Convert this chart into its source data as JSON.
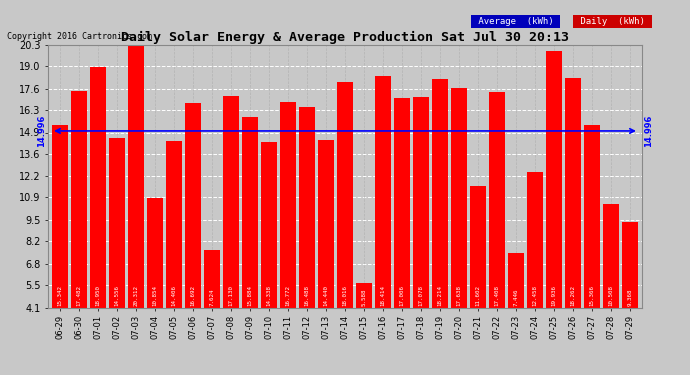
{
  "title": "Daily Solar Energy & Average Production Sat Jul 30 20:13",
  "copyright": "Copyright 2016 Cartronics.com",
  "average_label": "14.996",
  "average_value": 14.996,
  "bar_color": "#FF0000",
  "avg_line_color": "#0000FF",
  "background_color": "#C8C8C8",
  "plot_bg_color": "#C8C8C8",
  "categories": [
    "06-29",
    "06-30",
    "07-01",
    "07-02",
    "07-03",
    "07-04",
    "07-05",
    "07-06",
    "07-07",
    "07-08",
    "07-09",
    "07-10",
    "07-11",
    "07-12",
    "07-13",
    "07-14",
    "07-15",
    "07-16",
    "07-17",
    "07-18",
    "07-19",
    "07-20",
    "07-21",
    "07-22",
    "07-23",
    "07-24",
    "07-25",
    "07-26",
    "07-27",
    "07-28",
    "07-29"
  ],
  "values": [
    15.342,
    17.482,
    18.95,
    14.556,
    20.312,
    10.854,
    14.406,
    16.692,
    7.624,
    17.13,
    15.884,
    14.338,
    16.772,
    16.488,
    14.44,
    18.016,
    5.588,
    18.414,
    17.006,
    17.078,
    18.214,
    17.638,
    11.602,
    17.408,
    7.446,
    12.458,
    19.936,
    18.262,
    15.366,
    10.508,
    9.368
  ],
  "yticks": [
    4.1,
    5.5,
    6.8,
    8.2,
    9.5,
    10.9,
    12.2,
    13.6,
    14.9,
    16.3,
    17.6,
    19.0,
    20.3
  ],
  "ymin": 4.1,
  "ymax": 20.3,
  "legend_avg_bg": "#0000BB",
  "legend_daily_bg": "#CC0000",
  "legend_text_color": "#FFFFFF"
}
